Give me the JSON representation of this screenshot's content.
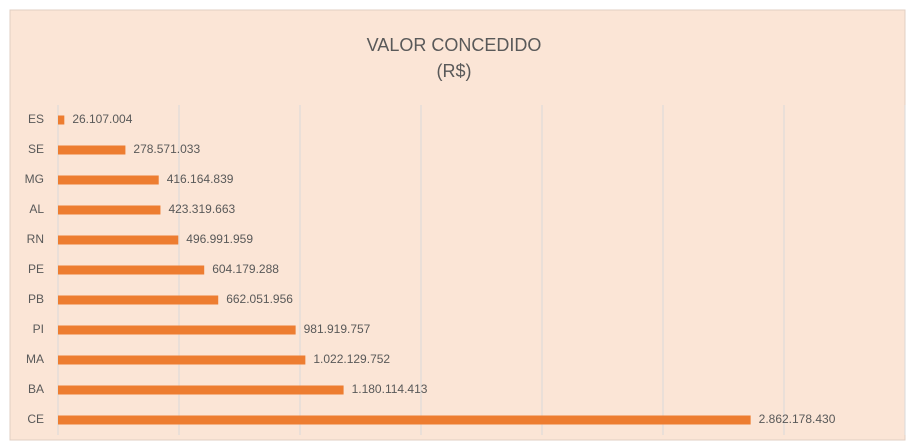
{
  "chart_data": {
    "type": "barh",
    "title": "VALOR CONCEDIDO",
    "subtitle": "(R$)",
    "categories": [
      "ES",
      "SE",
      "MG",
      "AL",
      "RN",
      "PE",
      "PB",
      "PI",
      "MA",
      "BA",
      "CE"
    ],
    "values": [
      26107004,
      278571033,
      416164839,
      423319663,
      496991959,
      604179288,
      662051956,
      981919757,
      1022129752,
      1180114413,
      2862178430
    ],
    "value_labels": [
      "26.107.004",
      "278.571.033",
      "416.164.839",
      "423.319.663",
      "496.991.959",
      "604.179.288",
      "662.051.956",
      "981.919.757",
      "1.022.129.752",
      "1.180.114.413",
      "2.862.178.430"
    ],
    "color": "#ED7D31",
    "xlim": [
      0,
      3500000000
    ],
    "xticks": [
      0,
      500000000,
      1000000000,
      1500000000,
      2000000000,
      2500000000,
      3000000000,
      3500000000
    ],
    "grid": true
  }
}
